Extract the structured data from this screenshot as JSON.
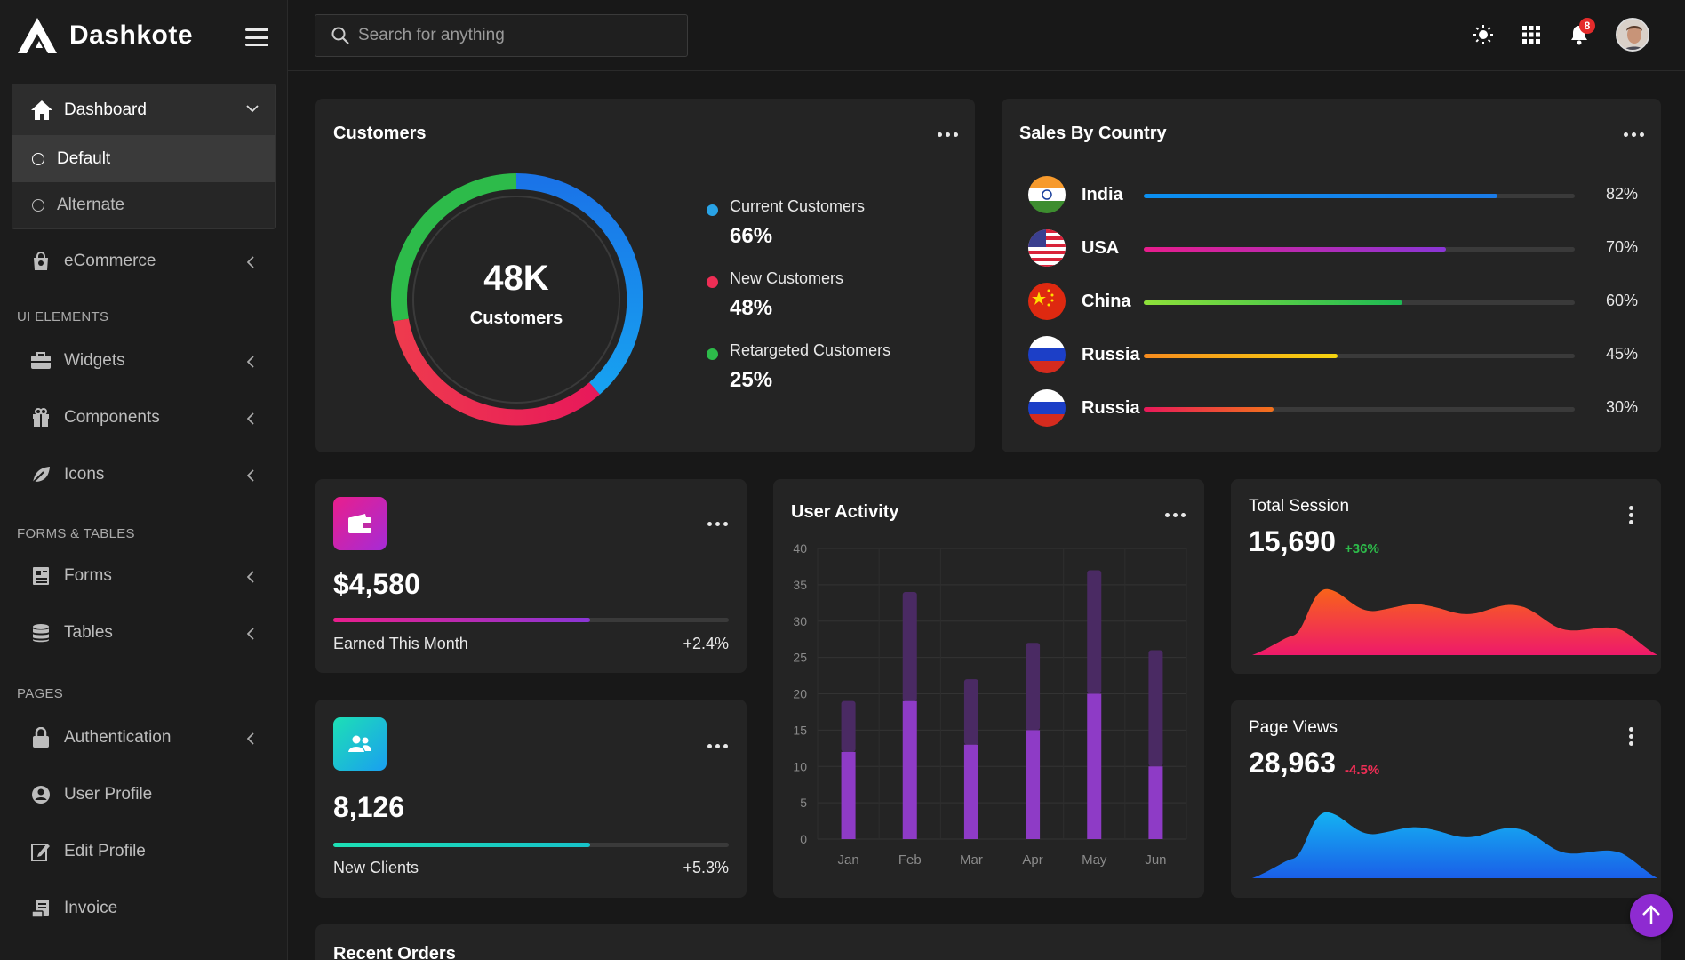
{
  "brand": {
    "name": "Dashkote"
  },
  "search": {
    "placeholder": "Search for anything"
  },
  "topbar": {
    "notification_count": "8"
  },
  "sidebar": {
    "dashboard": {
      "label": "Dashboard",
      "sub": [
        "Default",
        "Alternate"
      ]
    },
    "ecommerce": "eCommerce",
    "sections": {
      "ui": "UI ELEMENTS",
      "forms": "FORMS & TABLES",
      "pages": "PAGES"
    },
    "ui_items": [
      "Widgets",
      "Components",
      "Icons"
    ],
    "forms_items": [
      "Forms",
      "Tables"
    ],
    "pages_items": [
      "Authentication",
      "User Profile",
      "Edit Profile",
      "Invoice"
    ]
  },
  "customers": {
    "title": "Customers",
    "center_value": "48K",
    "center_label": "Customers",
    "legend": [
      {
        "label": "Current Customers",
        "value": "66%",
        "color": "#29a3e6"
      },
      {
        "label": "New Customers",
        "value": "48%",
        "color": "#ee2e55"
      },
      {
        "label": "Retargeted Customers",
        "value": "25%",
        "color": "#2dbb4a"
      }
    ]
  },
  "sales": {
    "title": "Sales By Country",
    "rows": [
      {
        "country": "India",
        "pct": "82%",
        "value": 82,
        "from": "#0a8ff0",
        "to": "#1a7be8"
      },
      {
        "country": "USA",
        "pct": "70%",
        "value": 70,
        "from": "#e81d8c",
        "to": "#8a36d6"
      },
      {
        "country": "China",
        "pct": "60%",
        "value": 60,
        "from": "#8fe03a",
        "to": "#1db954"
      },
      {
        "country": "Russia",
        "pct": "45%",
        "value": 45,
        "from": "#f78b1e",
        "to": "#f5d40f"
      },
      {
        "country": "Russia",
        "pct": "30%",
        "value": 30,
        "from": "#e8195a",
        "to": "#f2721c"
      }
    ]
  },
  "earned": {
    "value": "$4,580",
    "label": "Earned This Month",
    "delta": "+2.4%",
    "progress": 65
  },
  "clients": {
    "value": "8,126",
    "label": "New Clients",
    "delta": "+5.3%",
    "progress": 65
  },
  "activity": {
    "title": "User Activity"
  },
  "session": {
    "title": "Total Session",
    "value": "15,690",
    "delta": "+36%"
  },
  "pageviews": {
    "title": "Page Views",
    "value": "28,963",
    "delta": "-4.5%"
  },
  "recent_orders": {
    "title": "Recent Orders"
  },
  "chart_data": {
    "type": "bar",
    "categories": [
      "Jan",
      "Feb",
      "Mar",
      "Apr",
      "May",
      "Jun"
    ],
    "series": [
      {
        "values": [
          12,
          19,
          13,
          15,
          20,
          10
        ]
      },
      {
        "values": [
          7,
          15,
          9,
          12,
          17,
          16
        ]
      }
    ],
    "stacked": true,
    "ylim": [
      0,
      40
    ],
    "yticks": [
      0,
      5,
      10,
      15,
      20,
      25,
      30,
      35,
      40
    ],
    "grid": true
  }
}
